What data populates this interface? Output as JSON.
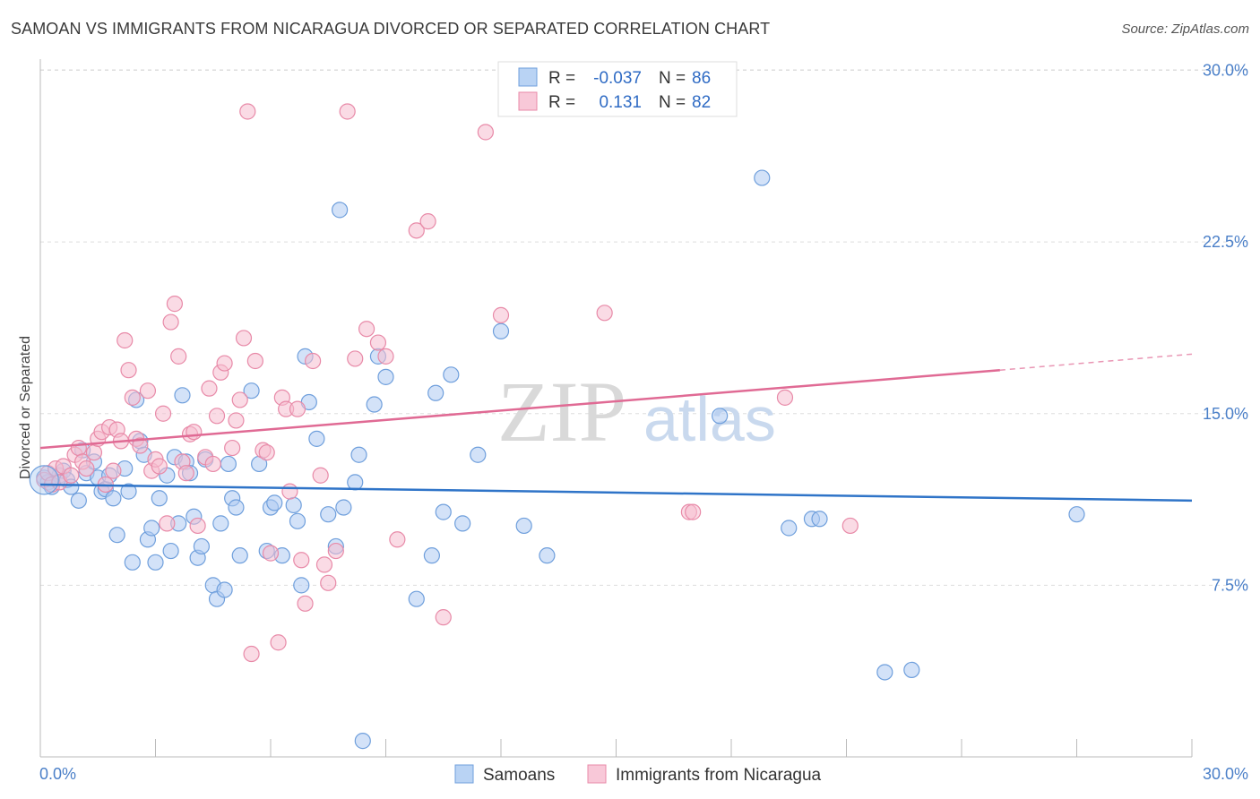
{
  "title": "SAMOAN VS IMMIGRANTS FROM NICARAGUA DIVORCED OR SEPARATED CORRELATION CHART",
  "source": "Source: ZipAtlas.com",
  "watermark": {
    "zip": "ZIP",
    "atlas": "atlas"
  },
  "colors": {
    "blue_fill": "#aecbf2",
    "blue_stroke": "#6f9fdc",
    "blue_line": "#2f74c8",
    "pink_fill": "#f6bdd0",
    "pink_stroke": "#e88aa8",
    "pink_line": "#e06a94",
    "grid": "#dddddd",
    "tick_text": "#4a7fc8"
  },
  "legend": {
    "rows": [
      {
        "r_label": "R =",
        "r_value": "-0.037",
        "n_label": "N =",
        "n_value": "86"
      },
      {
        "r_label": "R =",
        "r_value": "0.131",
        "n_label": "N =",
        "n_value": "82"
      }
    ]
  },
  "bottom_legend": [
    "Samoans",
    "Immigrants from Nicaragua"
  ],
  "chart_data": {
    "type": "scatter",
    "title": "SAMOAN VS IMMIGRANTS FROM NICARAGUA DIVORCED OR SEPARATED CORRELATION CHART",
    "ylabel": "Divorced or Separated",
    "xlim": [
      0,
      30
    ],
    "ylim": [
      0,
      31
    ],
    "x_tick_labels": [
      "0.0%",
      "30.0%"
    ],
    "y_tick_values": [
      7.5,
      15.0,
      22.5,
      30.0
    ],
    "y_tick_labels": [
      "7.5%",
      "15.0%",
      "22.5%",
      "30.0%"
    ],
    "legend_placement": "top-center",
    "series": [
      {
        "name": "Samoans",
        "trend": {
          "x": [
            0,
            30
          ],
          "y": [
            11.9,
            11.2
          ]
        },
        "points": [
          [
            0.1,
            12.2
          ],
          [
            0.2,
            12.0
          ],
          [
            0.3,
            11.8
          ],
          [
            0.5,
            12.3
          ],
          [
            0.6,
            12.5
          ],
          [
            0.7,
            12.1
          ],
          [
            0.8,
            11.8
          ],
          [
            1.0,
            11.2
          ],
          [
            1.1,
            13.4
          ],
          [
            1.2,
            12.4
          ],
          [
            1.4,
            12.9
          ],
          [
            1.5,
            12.2
          ],
          [
            1.6,
            11.6
          ],
          [
            1.7,
            11.7
          ],
          [
            1.8,
            12.3
          ],
          [
            1.9,
            11.3
          ],
          [
            2.0,
            9.7
          ],
          [
            2.2,
            12.6
          ],
          [
            2.3,
            11.6
          ],
          [
            2.4,
            8.5
          ],
          [
            2.5,
            15.6
          ],
          [
            2.6,
            13.8
          ],
          [
            2.7,
            13.2
          ],
          [
            2.8,
            9.5
          ],
          [
            2.9,
            10.0
          ],
          [
            3.0,
            8.5
          ],
          [
            3.1,
            11.3
          ],
          [
            3.3,
            12.3
          ],
          [
            3.4,
            9.0
          ],
          [
            3.5,
            13.1
          ],
          [
            3.6,
            10.2
          ],
          [
            3.7,
            15.8
          ],
          [
            3.8,
            12.9
          ],
          [
            3.9,
            12.4
          ],
          [
            4.0,
            10.5
          ],
          [
            4.1,
            8.7
          ],
          [
            4.2,
            9.2
          ],
          [
            4.3,
            13.0
          ],
          [
            4.5,
            7.5
          ],
          [
            4.6,
            6.9
          ],
          [
            4.7,
            10.2
          ],
          [
            4.8,
            7.3
          ],
          [
            4.9,
            12.8
          ],
          [
            5.0,
            11.3
          ],
          [
            5.1,
            10.9
          ],
          [
            5.2,
            8.8
          ],
          [
            5.5,
            16.0
          ],
          [
            5.7,
            12.8
          ],
          [
            5.9,
            9.0
          ],
          [
            6.0,
            10.9
          ],
          [
            6.1,
            11.1
          ],
          [
            6.3,
            8.8
          ],
          [
            6.6,
            11.0
          ],
          [
            6.7,
            10.3
          ],
          [
            6.8,
            7.5
          ],
          [
            6.9,
            17.5
          ],
          [
            7.0,
            15.5
          ],
          [
            7.2,
            13.9
          ],
          [
            7.5,
            10.6
          ],
          [
            7.7,
            9.2
          ],
          [
            7.8,
            23.9
          ],
          [
            7.9,
            10.9
          ],
          [
            8.2,
            12.0
          ],
          [
            8.3,
            13.2
          ],
          [
            8.4,
            0.7
          ],
          [
            8.7,
            15.4
          ],
          [
            8.8,
            17.5
          ],
          [
            9.0,
            16.6
          ],
          [
            9.8,
            6.9
          ],
          [
            10.2,
            8.8
          ],
          [
            10.3,
            15.9
          ],
          [
            10.5,
            10.7
          ],
          [
            10.7,
            16.7
          ],
          [
            11.0,
            10.2
          ],
          [
            11.4,
            13.2
          ],
          [
            12.0,
            18.6
          ],
          [
            12.6,
            10.1
          ],
          [
            13.2,
            8.8
          ],
          [
            17.7,
            14.9
          ],
          [
            18.8,
            25.3
          ],
          [
            19.5,
            10.0
          ],
          [
            20.1,
            10.4
          ],
          [
            20.3,
            10.4
          ],
          [
            22.0,
            3.7
          ],
          [
            22.7,
            3.8
          ],
          [
            27.0,
            10.6
          ]
        ]
      },
      {
        "name": "Immigrants from Nicaragua",
        "trend": {
          "x": [
            0,
            25
          ],
          "y": [
            13.5,
            16.9
          ]
        },
        "trend_dashed": {
          "x": [
            25,
            30
          ],
          "y": [
            16.9,
            17.6
          ]
        },
        "points": [
          [
            0.1,
            12.1
          ],
          [
            0.2,
            12.4
          ],
          [
            0.3,
            11.9
          ],
          [
            0.4,
            12.6
          ],
          [
            0.5,
            12.0
          ],
          [
            0.6,
            12.7
          ],
          [
            0.8,
            12.3
          ],
          [
            0.9,
            13.2
          ],
          [
            1.0,
            13.5
          ],
          [
            1.1,
            12.9
          ],
          [
            1.2,
            12.6
          ],
          [
            1.4,
            13.3
          ],
          [
            1.5,
            13.9
          ],
          [
            1.6,
            14.2
          ],
          [
            1.7,
            11.9
          ],
          [
            1.8,
            14.4
          ],
          [
            1.9,
            12.5
          ],
          [
            2.0,
            14.3
          ],
          [
            2.1,
            13.8
          ],
          [
            2.2,
            18.2
          ],
          [
            2.3,
            16.9
          ],
          [
            2.4,
            15.7
          ],
          [
            2.5,
            13.9
          ],
          [
            2.6,
            13.6
          ],
          [
            2.8,
            16.0
          ],
          [
            2.9,
            12.5
          ],
          [
            3.0,
            13.0
          ],
          [
            3.1,
            12.7
          ],
          [
            3.2,
            15.0
          ],
          [
            3.3,
            10.2
          ],
          [
            3.4,
            19.0
          ],
          [
            3.5,
            19.8
          ],
          [
            3.6,
            17.5
          ],
          [
            3.7,
            12.9
          ],
          [
            3.8,
            12.4
          ],
          [
            3.9,
            14.1
          ],
          [
            4.0,
            14.2
          ],
          [
            4.1,
            10.1
          ],
          [
            4.3,
            13.1
          ],
          [
            4.4,
            16.1
          ],
          [
            4.5,
            12.8
          ],
          [
            4.6,
            14.9
          ],
          [
            4.7,
            16.8
          ],
          [
            4.8,
            17.2
          ],
          [
            5.0,
            13.5
          ],
          [
            5.1,
            14.7
          ],
          [
            5.2,
            15.6
          ],
          [
            5.3,
            18.3
          ],
          [
            5.4,
            28.2
          ],
          [
            5.5,
            4.5
          ],
          [
            5.6,
            17.3
          ],
          [
            5.8,
            13.4
          ],
          [
            5.9,
            13.3
          ],
          [
            6.0,
            8.9
          ],
          [
            6.2,
            5.0
          ],
          [
            6.3,
            15.7
          ],
          [
            6.4,
            15.2
          ],
          [
            6.5,
            11.6
          ],
          [
            6.7,
            15.2
          ],
          [
            6.8,
            8.6
          ],
          [
            6.9,
            6.7
          ],
          [
            7.1,
            17.3
          ],
          [
            7.3,
            12.3
          ],
          [
            7.4,
            8.4
          ],
          [
            7.5,
            7.6
          ],
          [
            7.7,
            9.0
          ],
          [
            8.0,
            28.2
          ],
          [
            8.2,
            17.4
          ],
          [
            8.5,
            18.7
          ],
          [
            8.8,
            18.1
          ],
          [
            9.0,
            17.5
          ],
          [
            9.3,
            9.5
          ],
          [
            9.8,
            23.0
          ],
          [
            10.1,
            23.4
          ],
          [
            10.5,
            6.1
          ],
          [
            11.6,
            27.3
          ],
          [
            12.0,
            19.3
          ],
          [
            14.7,
            19.4
          ],
          [
            16.9,
            10.7
          ],
          [
            17.0,
            10.7
          ],
          [
            19.4,
            15.7
          ],
          [
            21.1,
            10.1
          ]
        ]
      }
    ]
  }
}
